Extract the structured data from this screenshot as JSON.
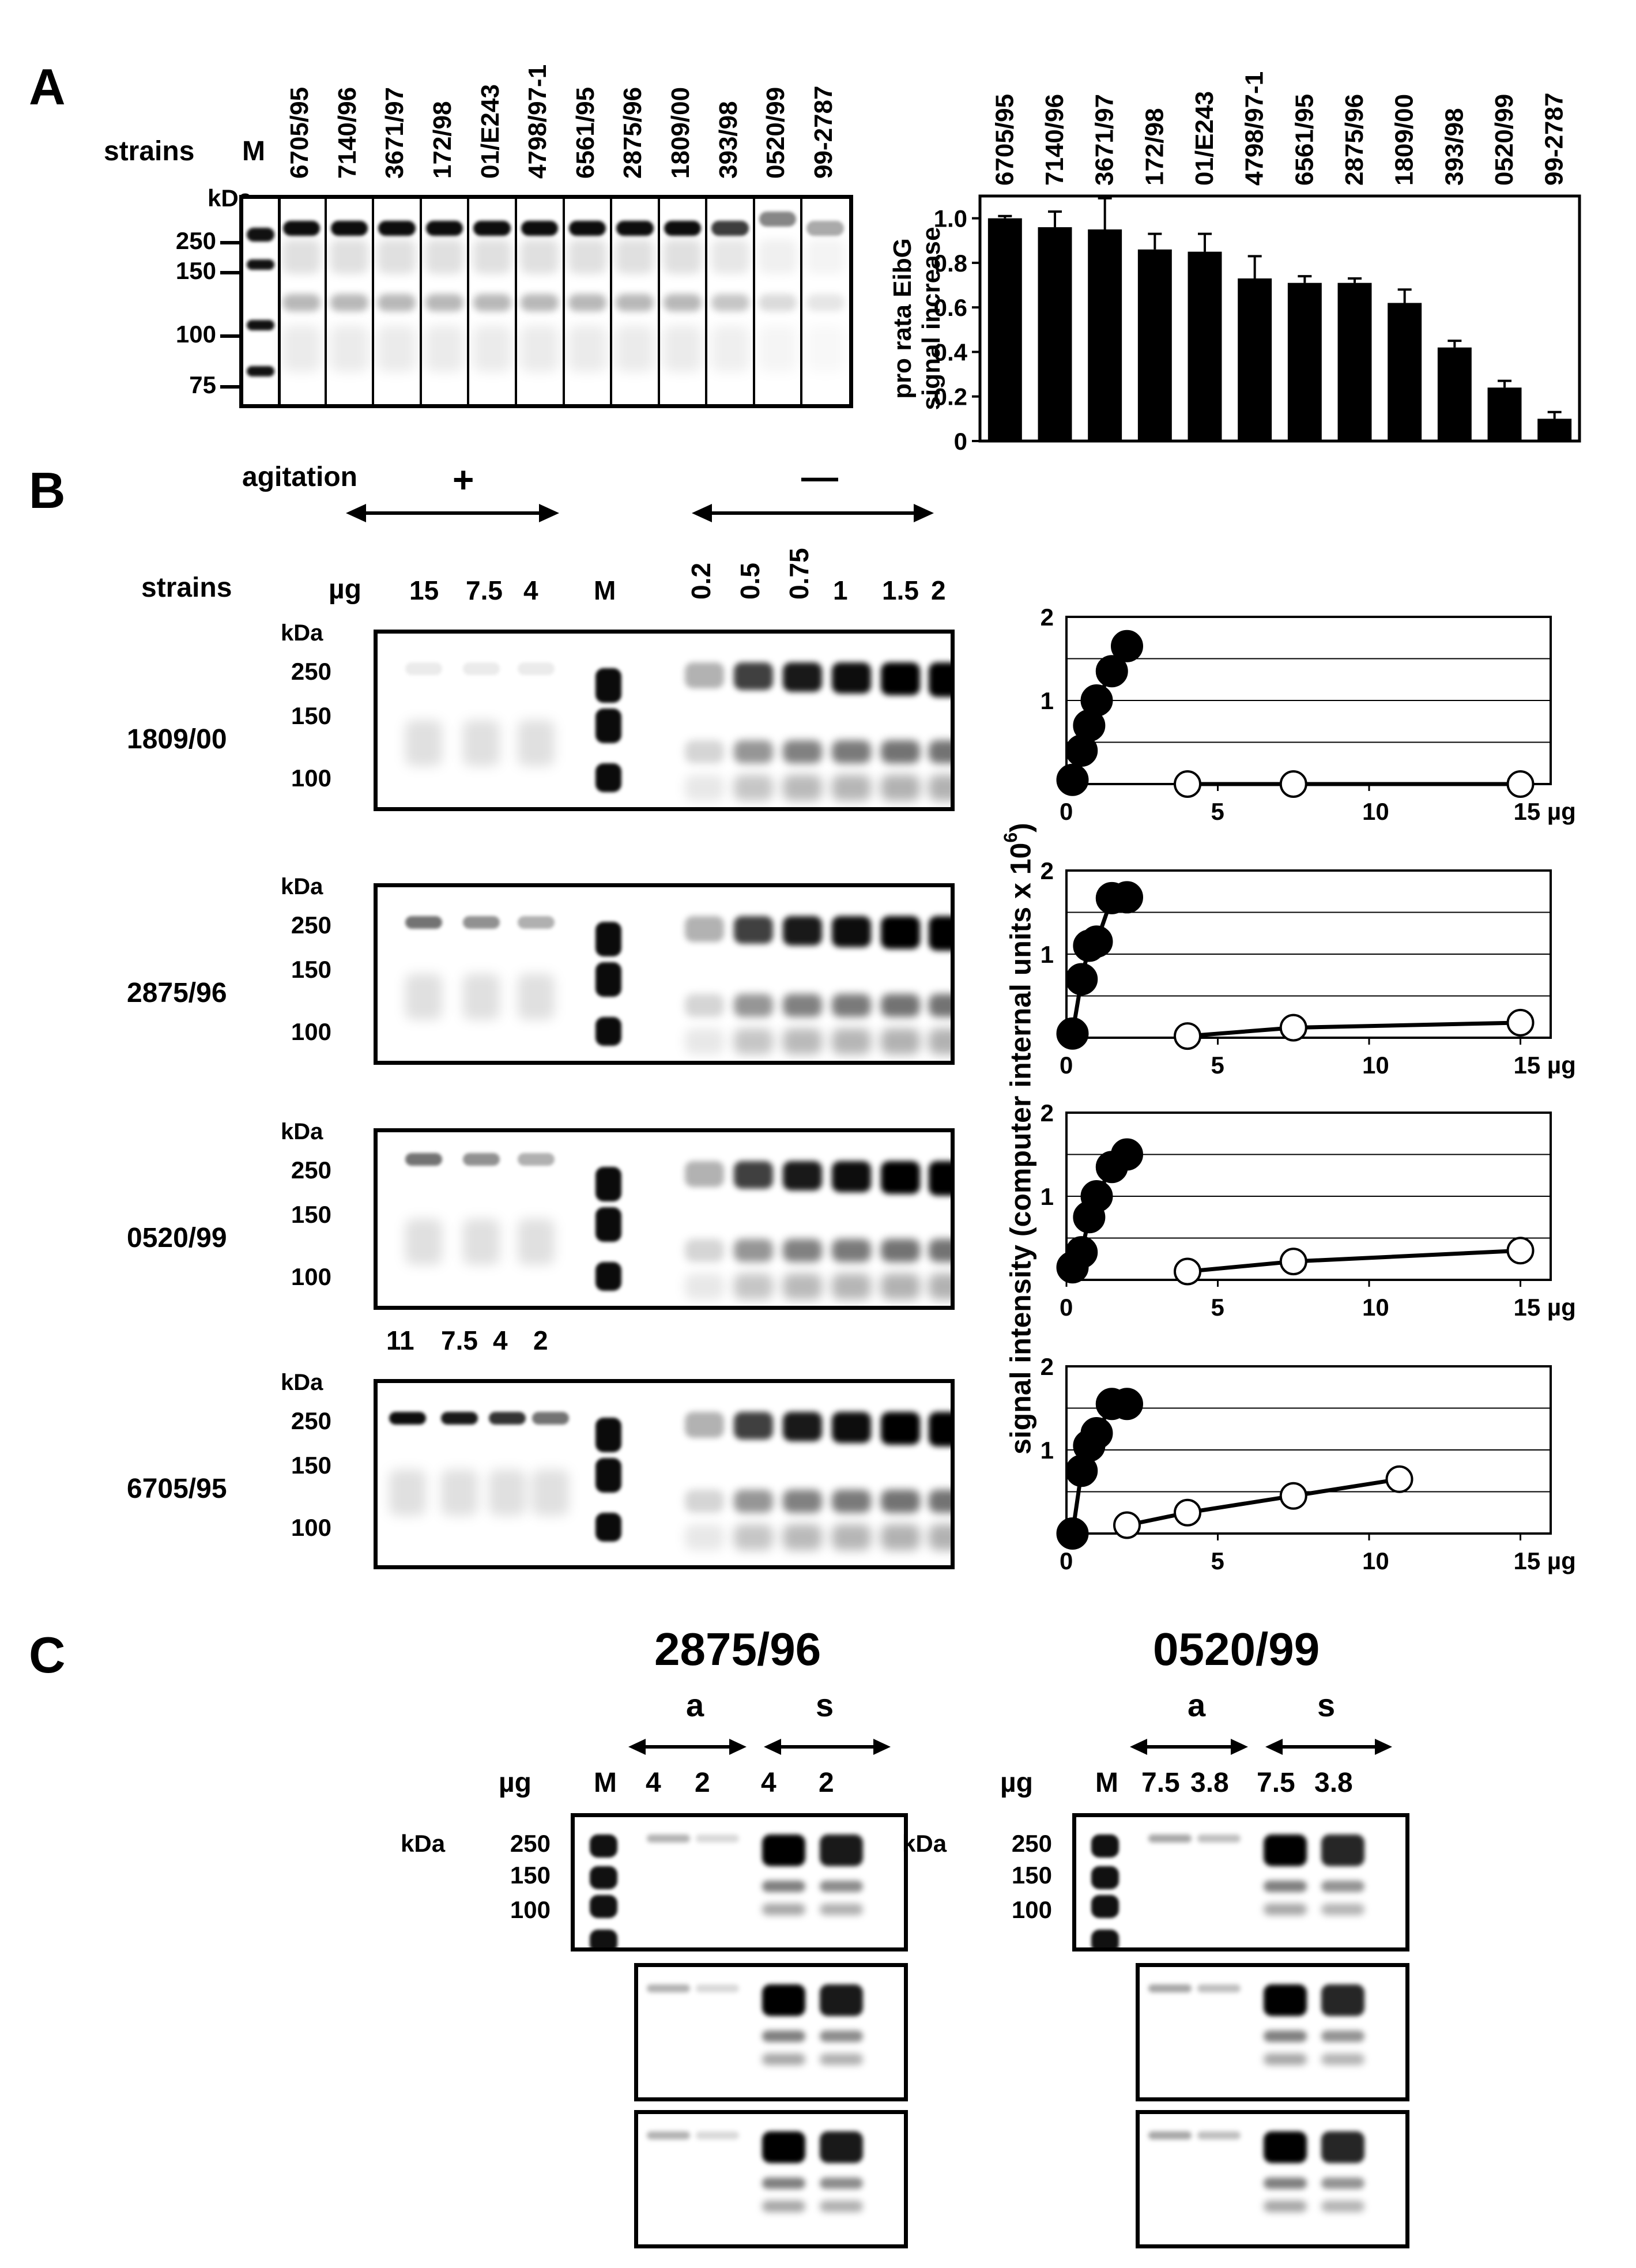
{
  "panelA": {
    "letter": "A",
    "strains_label": "strains",
    "marker_label": "M",
    "kda_label": "kDa",
    "markers": [
      "250",
      "150",
      "100",
      "75"
    ],
    "strains": [
      "6705/95",
      "7140/96",
      "3671/97",
      "172/98",
      "01/E243",
      "4798/97-1",
      "6561/95",
      "2875/96",
      "1809/00",
      "393/98",
      "0520/99",
      "99-2787"
    ]
  },
  "panelB": {
    "letter": "B",
    "agitation_label": "agitation",
    "plus_sign": "+",
    "minus_sign": "—",
    "strains_label": "strains",
    "ug_label": "µg",
    "kda_label": "kDa",
    "marker_label": "M",
    "agitated_amounts": [
      "15",
      "7.5",
      "4"
    ],
    "static_amounts": [
      "0.2",
      "0.5",
      "0.75",
      "1",
      "1.5",
      "2"
    ],
    "last_agitated_amounts": [
      "11",
      "7.5",
      "4",
      "2"
    ],
    "strain_rows": [
      "1809/00",
      "2875/96",
      "0520/99",
      "6705/95"
    ],
    "markers": [
      "250",
      "150",
      "100"
    ],
    "y_axis_label": "signal intensity (computer internal  units x 10",
    "y_axis_exponent": "6",
    "y_axis_close": ")"
  },
  "panelC": {
    "letter": "C",
    "left_title": "2875/96",
    "right_title": "0520/99",
    "a_label": "a",
    "s_label": "s",
    "ug_label": "µg",
    "marker_label": "M",
    "kda_label": "kDa",
    "markers": [
      "250",
      "150",
      "100"
    ],
    "left_amounts": [
      "4",
      "2",
      "4",
      "2"
    ],
    "right_amounts": [
      "7.5",
      "3.8",
      "7.5",
      "3.8"
    ]
  },
  "chart_data": [
    {
      "type": "bar",
      "ylabel": "pro rata EibG signal increase",
      "categories": [
        "6705/95",
        "7140/96",
        "3671/97",
        "172/98",
        "01/E243",
        "4798/97-1",
        "6561/95",
        "2875/96",
        "1809/00",
        "393/98",
        "0520/99",
        "99-2787"
      ],
      "values": [
        1.0,
        0.96,
        0.95,
        0.86,
        0.85,
        0.73,
        0.71,
        0.71,
        0.62,
        0.42,
        0.24,
        0.1
      ],
      "errors": [
        0.01,
        0.07,
        0.14,
        0.07,
        0.08,
        0.1,
        0.03,
        0.02,
        0.06,
        0.03,
        0.03,
        0.03
      ],
      "ylim": [
        0,
        1.1
      ],
      "yticks": [
        "0",
        "0.2",
        "0.4",
        "0.6",
        "0.8",
        "1.0"
      ],
      "grid": false
    },
    {
      "type": "scatter",
      "strain": "1809/00",
      "xticks": [
        "0",
        "5",
        "10",
        "15 µg"
      ],
      "yticks": [
        "1",
        "2"
      ],
      "xlim": [
        0,
        16
      ],
      "ylim": [
        0,
        2
      ],
      "grid": "horizontal",
      "series": [
        {
          "filled": true,
          "points": [
            [
              0.2,
              0.05
            ],
            [
              0.5,
              0.4
            ],
            [
              0.75,
              0.7
            ],
            [
              1,
              1.0
            ],
            [
              1.5,
              1.35
            ],
            [
              2,
              1.65
            ]
          ]
        },
        {
          "filled": false,
          "points": [
            [
              4,
              0.0
            ],
            [
              7.5,
              0.0
            ],
            [
              15,
              0.0
            ]
          ]
        }
      ]
    },
    {
      "type": "scatter",
      "strain": "2875/96",
      "xticks": [
        "0",
        "5",
        "10",
        "15 µg"
      ],
      "yticks": [
        "1",
        "2"
      ],
      "xlim": [
        0,
        16
      ],
      "ylim": [
        0,
        2
      ],
      "grid": "horizontal",
      "series": [
        {
          "filled": true,
          "points": [
            [
              0.2,
              0.05
            ],
            [
              0.5,
              0.7
            ],
            [
              0.75,
              1.1
            ],
            [
              1,
              1.15
            ],
            [
              1.5,
              1.67
            ],
            [
              2,
              1.68
            ]
          ]
        },
        {
          "filled": false,
          "points": [
            [
              4,
              0.02
            ],
            [
              7.5,
              0.12
            ],
            [
              15,
              0.18
            ]
          ]
        }
      ]
    },
    {
      "type": "scatter",
      "strain": "0520/99",
      "xticks": [
        "0",
        "5",
        "10",
        "15 µg"
      ],
      "yticks": [
        "1",
        "2"
      ],
      "xlim": [
        0,
        16
      ],
      "ylim": [
        0,
        2
      ],
      "grid": "horizontal",
      "series": [
        {
          "filled": true,
          "points": [
            [
              0.2,
              0.15
            ],
            [
              0.5,
              0.33
            ],
            [
              0.75,
              0.75
            ],
            [
              1,
              1.0
            ],
            [
              1.5,
              1.35
            ],
            [
              2,
              1.5
            ]
          ]
        },
        {
          "filled": false,
          "points": [
            [
              4,
              0.1
            ],
            [
              7.5,
              0.22
            ],
            [
              15,
              0.35
            ]
          ]
        }
      ]
    },
    {
      "type": "scatter",
      "strain": "6705/95",
      "xticks": [
        "0",
        "5",
        "10",
        "15 µg"
      ],
      "yticks": [
        "1",
        "2"
      ],
      "xlim": [
        0,
        16
      ],
      "ylim": [
        0,
        2
      ],
      "grid": "horizontal",
      "series": [
        {
          "filled": true,
          "points": [
            [
              0.2,
              0.0
            ],
            [
              0.5,
              0.75
            ],
            [
              0.75,
              1.05
            ],
            [
              1,
              1.2
            ],
            [
              1.5,
              1.55
            ],
            [
              2,
              1.55
            ]
          ]
        },
        {
          "filled": false,
          "points": [
            [
              2,
              0.1
            ],
            [
              4,
              0.25
            ],
            [
              7.5,
              0.45
            ],
            [
              11,
              0.65
            ]
          ]
        }
      ]
    }
  ]
}
